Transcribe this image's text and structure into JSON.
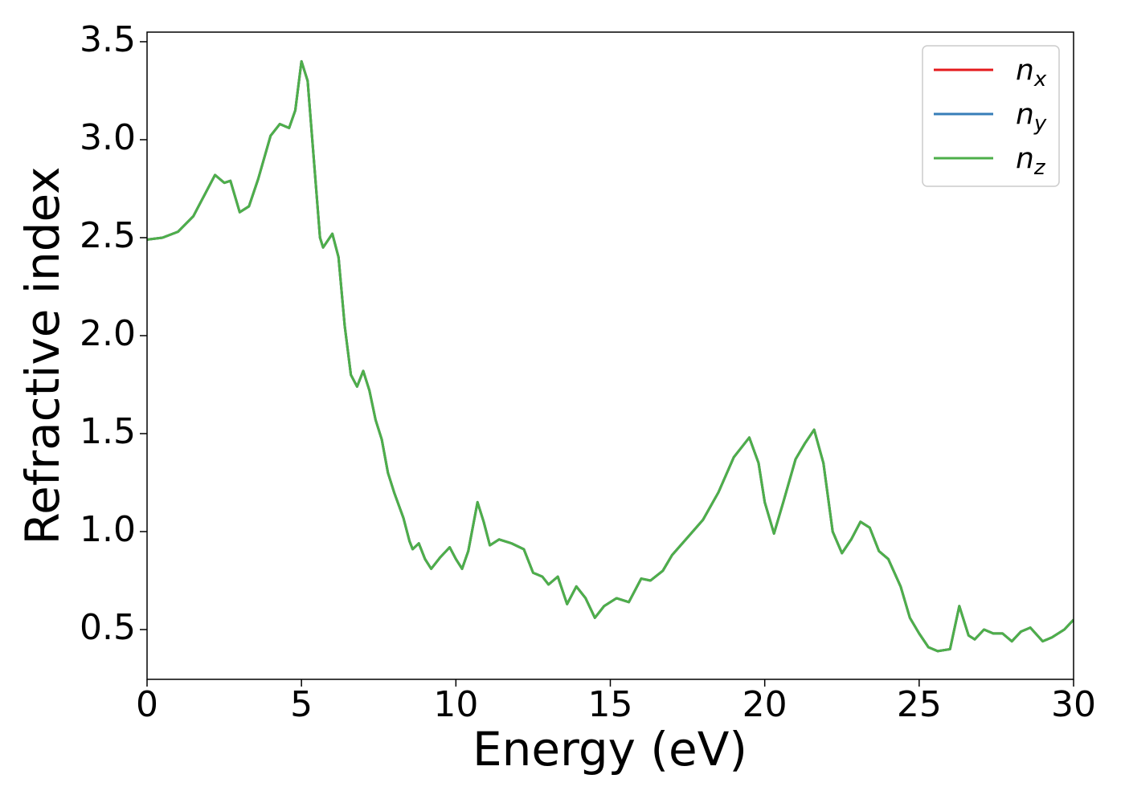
{
  "chart_data": {
    "type": "line",
    "xlabel": "Energy (eV)",
    "ylabel": "Refractive index",
    "x": [
      0,
      0.5,
      1,
      1.5,
      2,
      2.2,
      2.5,
      2.7,
      3,
      3.3,
      3.6,
      4,
      4.3,
      4.6,
      4.8,
      5.0,
      5.2,
      5.4,
      5.6,
      5.7,
      6.0,
      6.2,
      6.4,
      6.6,
      6.8,
      7.0,
      7.2,
      7.4,
      7.6,
      7.8,
      8.0,
      8.3,
      8.5,
      8.6,
      8.8,
      9.0,
      9.2,
      9.5,
      9.8,
      10.0,
      10.2,
      10.4,
      10.7,
      10.9,
      11.1,
      11.4,
      11.8,
      12.2,
      12.5,
      12.8,
      13.0,
      13.3,
      13.6,
      13.9,
      14.2,
      14.5,
      14.8,
      15.2,
      15.6,
      16.0,
      16.3,
      16.7,
      17.0,
      17.5,
      18.0,
      18.5,
      19.0,
      19.5,
      19.8,
      20.0,
      20.3,
      20.6,
      21.0,
      21.3,
      21.6,
      21.9,
      22.2,
      22.5,
      22.8,
      23.1,
      23.4,
      23.7,
      24.0,
      24.4,
      24.7,
      25.0,
      25.3,
      25.6,
      26.0,
      26.3,
      26.6,
      26.8,
      27.1,
      27.4,
      27.7,
      28.0,
      28.3,
      28.6,
      29.0,
      29.3,
      29.7,
      30
    ],
    "series": [
      {
        "name": "nx",
        "color": "#e41a1c",
        "values": [
          2.49,
          2.5,
          2.53,
          2.61,
          2.76,
          2.82,
          2.78,
          2.79,
          2.63,
          2.66,
          2.8,
          3.02,
          3.08,
          3.06,
          3.15,
          3.4,
          3.3,
          2.9,
          2.5,
          2.45,
          2.52,
          2.4,
          2.05,
          1.8,
          1.74,
          1.82,
          1.72,
          1.57,
          1.47,
          1.3,
          1.2,
          1.07,
          0.95,
          0.91,
          0.94,
          0.86,
          0.81,
          0.87,
          0.92,
          0.86,
          0.81,
          0.9,
          1.15,
          1.05,
          0.93,
          0.96,
          0.94,
          0.91,
          0.79,
          0.77,
          0.73,
          0.77,
          0.63,
          0.72,
          0.66,
          0.56,
          0.62,
          0.66,
          0.64,
          0.76,
          0.75,
          0.8,
          0.88,
          0.97,
          1.06,
          1.2,
          1.38,
          1.48,
          1.35,
          1.15,
          0.99,
          1.15,
          1.37,
          1.45,
          1.52,
          1.35,
          1.0,
          0.89,
          0.96,
          1.05,
          1.02,
          0.9,
          0.86,
          0.72,
          0.56,
          0.48,
          0.41,
          0.39,
          0.4,
          0.62,
          0.47,
          0.45,
          0.5,
          0.48,
          0.48,
          0.44,
          0.49,
          0.51,
          0.44,
          0.46,
          0.5,
          0.55
        ]
      },
      {
        "name": "ny",
        "color": "#377eb8",
        "values": [
          2.49,
          2.5,
          2.53,
          2.61,
          2.76,
          2.82,
          2.78,
          2.79,
          2.63,
          2.66,
          2.8,
          3.02,
          3.08,
          3.06,
          3.15,
          3.4,
          3.3,
          2.9,
          2.5,
          2.45,
          2.52,
          2.4,
          2.05,
          1.8,
          1.74,
          1.82,
          1.72,
          1.57,
          1.47,
          1.3,
          1.2,
          1.07,
          0.95,
          0.91,
          0.94,
          0.86,
          0.81,
          0.87,
          0.92,
          0.86,
          0.81,
          0.9,
          1.15,
          1.05,
          0.93,
          0.96,
          0.94,
          0.91,
          0.79,
          0.77,
          0.73,
          0.77,
          0.63,
          0.72,
          0.66,
          0.56,
          0.62,
          0.66,
          0.64,
          0.76,
          0.75,
          0.8,
          0.88,
          0.97,
          1.06,
          1.2,
          1.38,
          1.48,
          1.35,
          1.15,
          0.99,
          1.15,
          1.37,
          1.45,
          1.52,
          1.35,
          1.0,
          0.89,
          0.96,
          1.05,
          1.02,
          0.9,
          0.86,
          0.72,
          0.56,
          0.48,
          0.41,
          0.39,
          0.4,
          0.62,
          0.47,
          0.45,
          0.5,
          0.48,
          0.48,
          0.44,
          0.49,
          0.51,
          0.44,
          0.46,
          0.5,
          0.55
        ]
      },
      {
        "name": "nz",
        "color": "#4daf4a",
        "values": [
          2.49,
          2.5,
          2.53,
          2.61,
          2.76,
          2.82,
          2.78,
          2.79,
          2.63,
          2.66,
          2.8,
          3.02,
          3.08,
          3.06,
          3.15,
          3.4,
          3.3,
          2.9,
          2.5,
          2.45,
          2.52,
          2.4,
          2.05,
          1.8,
          1.74,
          1.82,
          1.72,
          1.57,
          1.47,
          1.3,
          1.2,
          1.07,
          0.95,
          0.91,
          0.94,
          0.86,
          0.81,
          0.87,
          0.92,
          0.86,
          0.81,
          0.9,
          1.15,
          1.05,
          0.93,
          0.96,
          0.94,
          0.91,
          0.79,
          0.77,
          0.73,
          0.77,
          0.63,
          0.72,
          0.66,
          0.56,
          0.62,
          0.66,
          0.64,
          0.76,
          0.75,
          0.8,
          0.88,
          0.97,
          1.06,
          1.2,
          1.38,
          1.48,
          1.35,
          1.15,
          0.99,
          1.15,
          1.37,
          1.45,
          1.52,
          1.35,
          1.0,
          0.89,
          0.96,
          1.05,
          1.02,
          0.9,
          0.86,
          0.72,
          0.56,
          0.48,
          0.41,
          0.39,
          0.4,
          0.62,
          0.47,
          0.45,
          0.5,
          0.48,
          0.48,
          0.44,
          0.49,
          0.51,
          0.44,
          0.46,
          0.5,
          0.55
        ]
      }
    ],
    "xlim": [
      0,
      30
    ],
    "xticks": [
      0,
      5,
      10,
      15,
      20,
      25,
      30
    ],
    "ylim": [
      0.246,
      3.549
    ],
    "yticks": [
      0.5,
      {
        "value": 1,
        "label": "1.0"
      },
      1.5,
      {
        "value": 2,
        "label": "2.0"
      },
      2.5,
      {
        "value": 3,
        "label": "3.0"
      },
      3.5
    ],
    "grid": false,
    "legend": "upper right"
  }
}
